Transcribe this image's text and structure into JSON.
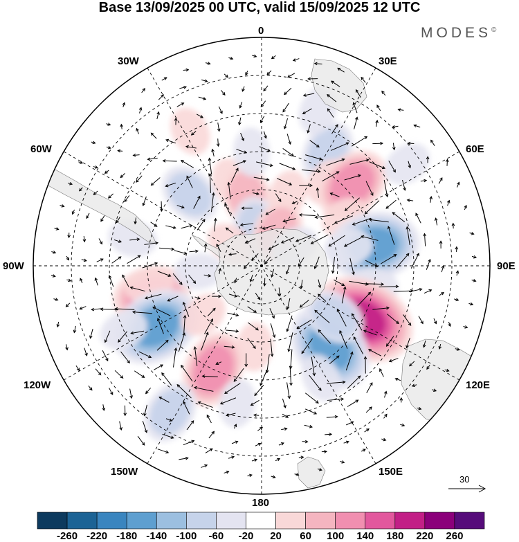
{
  "title": "Base 13/09/2025 00 UTC, valid 15/09/2025 12 UTC",
  "brand": "MODES",
  "brand_mark": "©",
  "lon_labels": {
    "lon_0": "0",
    "lon_30e": "30E",
    "lon_60e": "60E",
    "lon_90e": "90E",
    "lon_120e": "120E",
    "lon_150e": "150E",
    "lon_180": "180",
    "lon_150w": "150W",
    "lon_120w": "120W",
    "lon_90w": "90W",
    "lon_60w": "60W",
    "lon_30w": "30W"
  },
  "reference_vector": {
    "value": "30"
  },
  "colorbar": {
    "colors": [
      "#0d3a5e",
      "#1c6395",
      "#3a85bf",
      "#5e9fd0",
      "#9cbfe0",
      "#c6d3ea",
      "#e4e4f1",
      "#ffffff",
      "#f9d8d8",
      "#f5b5c0",
      "#f18fb0",
      "#e2589d",
      "#c21f86",
      "#8b007a",
      "#560c7a"
    ],
    "ticks": [
      "-260",
      "-220",
      "-180",
      "-140",
      "-100",
      "-60",
      "-20",
      "20",
      "60",
      "100",
      "140",
      "180",
      "220",
      "260"
    ]
  },
  "colors": {
    "land": "#e8e8e8",
    "frame": "#000000"
  },
  "anomalies": [
    {
      "lon": -105,
      "lat": -45,
      "value": 150
    },
    {
      "lon": -100,
      "lat": -45,
      "value": 40
    },
    {
      "lon": -45,
      "lat": -50,
      "value": -110
    },
    {
      "lon": -20,
      "lat": -55,
      "value": 50
    },
    {
      "lon": -12,
      "lat": -62,
      "value": 110
    },
    {
      "lon": -28,
      "lat": -30,
      "value": 50
    },
    {
      "lon": -5,
      "lat": -45,
      "value": -40
    },
    {
      "lon": 20,
      "lat": -60,
      "value": 40
    },
    {
      "lon": 30,
      "lat": -38,
      "value": -110
    },
    {
      "lon": 38,
      "lat": -48,
      "value": 40
    },
    {
      "lon": 48,
      "lat": -42,
      "value": 140
    },
    {
      "lon": 60,
      "lat": -52,
      "value": 60
    },
    {
      "lon": 80,
      "lat": -45,
      "value": -180
    },
    {
      "lon": 78,
      "lat": -55,
      "value": -60
    },
    {
      "lon": 100,
      "lat": -45,
      "value": -60
    },
    {
      "lon": 118,
      "lat": -45,
      "value": 210
    },
    {
      "lon": 140,
      "lat": -48,
      "value": -190
    },
    {
      "lon": 125,
      "lat": -55,
      "value": -80
    },
    {
      "lon": 152,
      "lat": -40,
      "value": -70
    },
    {
      "lon": -155,
      "lat": -45,
      "value": 150
    },
    {
      "lon": -175,
      "lat": -58,
      "value": 60
    },
    {
      "lon": -148,
      "lat": -22,
      "value": -110
    },
    {
      "lon": -120,
      "lat": -42,
      "value": -190
    },
    {
      "lon": -130,
      "lat": -60,
      "value": 60
    },
    {
      "lon": -95,
      "lat": -65,
      "value": -40
    },
    {
      "lon": -115,
      "lat": -30,
      "value": -50
    },
    {
      "lon": -8,
      "lat": -75,
      "value": -80
    },
    {
      "lon": 25,
      "lat": -75,
      "value": 80
    },
    {
      "lon": -55,
      "lat": -75,
      "value": 70
    },
    {
      "lon": 60,
      "lat": -75,
      "value": -50
    },
    {
      "lon": -78,
      "lat": -38,
      "value": -40
    },
    {
      "lon": -170,
      "lat": -35,
      "value": -40
    },
    {
      "lon": 20,
      "lat": -25,
      "value": -60
    },
    {
      "lon": 55,
      "lat": -20,
      "value": -40
    }
  ]
}
